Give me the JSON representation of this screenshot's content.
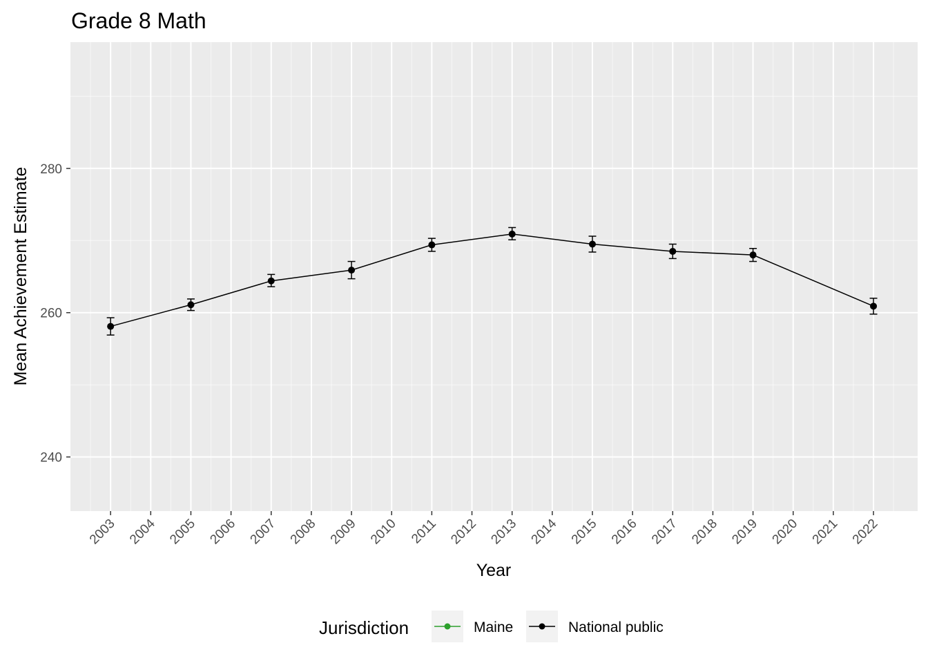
{
  "chart_data": {
    "type": "line",
    "title": "Grade 8 Math",
    "xlabel": "Year",
    "ylabel": "Mean Achievement Estimate",
    "x_ticks": [
      "2003",
      "2004",
      "2005",
      "2006",
      "2007",
      "2008",
      "2009",
      "2010",
      "2011",
      "2012",
      "2013",
      "2014",
      "2015",
      "2016",
      "2017",
      "2018",
      "2019",
      "2020",
      "2021",
      "2022"
    ],
    "y_ticks": [
      240,
      260,
      280
    ],
    "xlim": [
      2002,
      2023.1
    ],
    "ylim": [
      232.5,
      297.5
    ],
    "grid": true,
    "legend": {
      "title": "Jurisdiction",
      "position": "bottom",
      "entries": [
        {
          "name": "Maine",
          "color": "#2ca02c"
        },
        {
          "name": "National public",
          "color": "#000000"
        }
      ]
    },
    "series": [
      {
        "name": "National public",
        "color": "#000000",
        "x": [
          2003,
          2005,
          2007,
          2009,
          2011,
          2013,
          2015,
          2017,
          2019,
          2022
        ],
        "y": [
          258.1,
          261.1,
          264.4,
          265.9,
          269.4,
          270.9,
          269.5,
          268.5,
          268.0,
          260.9
        ],
        "err_low": [
          256.9,
          260.3,
          263.6,
          264.7,
          268.5,
          270.1,
          268.4,
          267.5,
          267.1,
          259.8
        ],
        "err_high": [
          259.3,
          261.9,
          265.3,
          267.1,
          270.3,
          271.8,
          270.6,
          269.5,
          268.9,
          262.0
        ]
      },
      {
        "name": "Maine",
        "color": "#2ca02c",
        "x": [],
        "y": []
      }
    ]
  }
}
